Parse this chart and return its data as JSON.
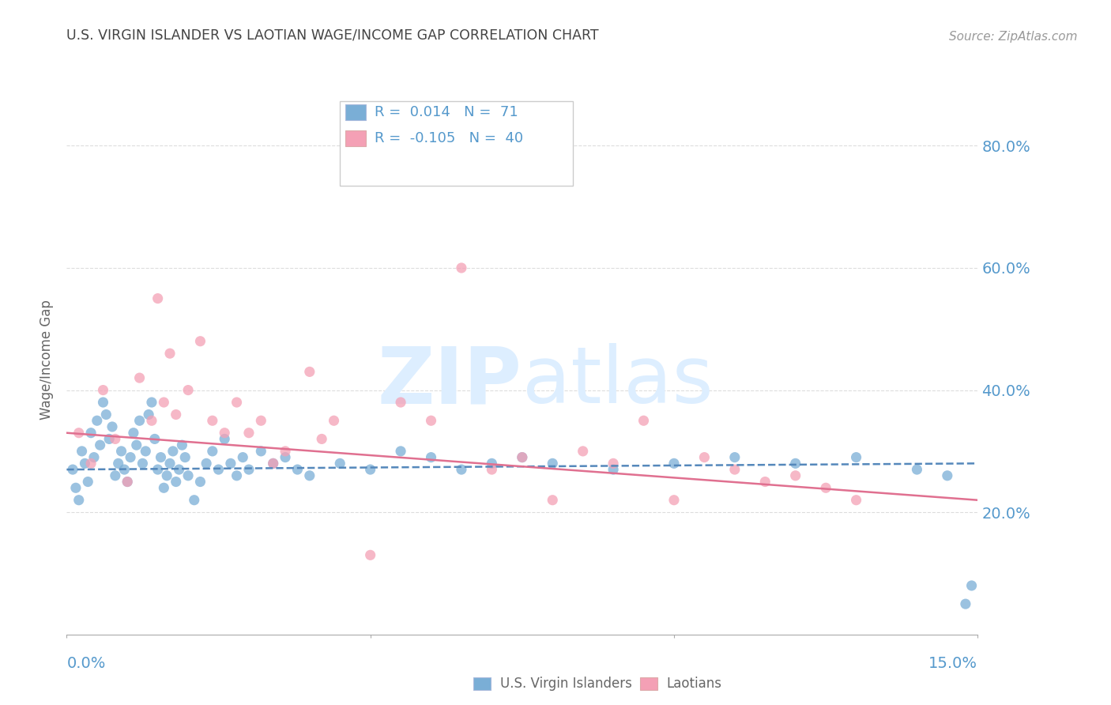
{
  "title": "U.S. VIRGIN ISLANDER VS LAOTIAN WAGE/INCOME GAP CORRELATION CHART",
  "source": "Source: ZipAtlas.com",
  "ylabel": "Wage/Income Gap",
  "x_min": 0.0,
  "x_max": 15.0,
  "y_min": 0.0,
  "y_max": 90.0,
  "y_ticks": [
    20.0,
    40.0,
    60.0,
    80.0
  ],
  "legend_blue_r": "0.014",
  "legend_blue_n": "71",
  "legend_pink_r": "-0.105",
  "legend_pink_n": "40",
  "blue_color": "#7aaed6",
  "pink_color": "#f4a0b5",
  "trend_blue_color": "#5588bb",
  "trend_pink_color": "#e07090",
  "title_color": "#444444",
  "axis_label_color": "#5599cc",
  "grid_color": "#dddddd",
  "watermark_text": "ZIPatlas",
  "watermark_color": "#ddeeff",
  "blue_scatter_x": [
    0.1,
    0.15,
    0.2,
    0.25,
    0.3,
    0.35,
    0.4,
    0.45,
    0.5,
    0.55,
    0.6,
    0.65,
    0.7,
    0.75,
    0.8,
    0.85,
    0.9,
    0.95,
    1.0,
    1.05,
    1.1,
    1.15,
    1.2,
    1.25,
    1.3,
    1.35,
    1.4,
    1.45,
    1.5,
    1.55,
    1.6,
    1.65,
    1.7,
    1.75,
    1.8,
    1.85,
    1.9,
    1.95,
    2.0,
    2.1,
    2.2,
    2.3,
    2.4,
    2.5,
    2.6,
    2.7,
    2.8,
    2.9,
    3.0,
    3.2,
    3.4,
    3.6,
    3.8,
    4.0,
    4.5,
    5.0,
    5.5,
    6.0,
    6.5,
    7.0,
    7.5,
    8.0,
    9.0,
    10.0,
    11.0,
    12.0,
    13.0,
    14.0,
    14.5,
    14.8,
    14.9
  ],
  "blue_scatter_y": [
    27,
    24,
    22,
    30,
    28,
    25,
    33,
    29,
    35,
    31,
    38,
    36,
    32,
    34,
    26,
    28,
    30,
    27,
    25,
    29,
    33,
    31,
    35,
    28,
    30,
    36,
    38,
    32,
    27,
    29,
    24,
    26,
    28,
    30,
    25,
    27,
    31,
    29,
    26,
    22,
    25,
    28,
    30,
    27,
    32,
    28,
    26,
    29,
    27,
    30,
    28,
    29,
    27,
    26,
    28,
    27,
    30,
    29,
    27,
    28,
    29,
    28,
    27,
    28,
    29,
    28,
    29,
    27,
    26,
    5,
    8
  ],
  "pink_scatter_x": [
    0.2,
    0.4,
    0.6,
    0.8,
    1.0,
    1.2,
    1.4,
    1.5,
    1.6,
    1.7,
    1.8,
    2.0,
    2.2,
    2.4,
    2.6,
    2.8,
    3.0,
    3.2,
    3.4,
    3.6,
    4.0,
    4.2,
    4.4,
    5.0,
    5.5,
    6.0,
    6.5,
    7.0,
    7.5,
    8.0,
    8.5,
    9.0,
    9.5,
    10.0,
    10.5,
    11.0,
    11.5,
    12.0,
    12.5,
    13.0
  ],
  "pink_scatter_y": [
    33,
    28,
    40,
    32,
    25,
    42,
    35,
    55,
    38,
    46,
    36,
    40,
    48,
    35,
    33,
    38,
    33,
    35,
    28,
    30,
    43,
    32,
    35,
    13,
    38,
    35,
    60,
    27,
    29,
    22,
    30,
    28,
    35,
    22,
    29,
    27,
    25,
    26,
    24,
    22
  ]
}
